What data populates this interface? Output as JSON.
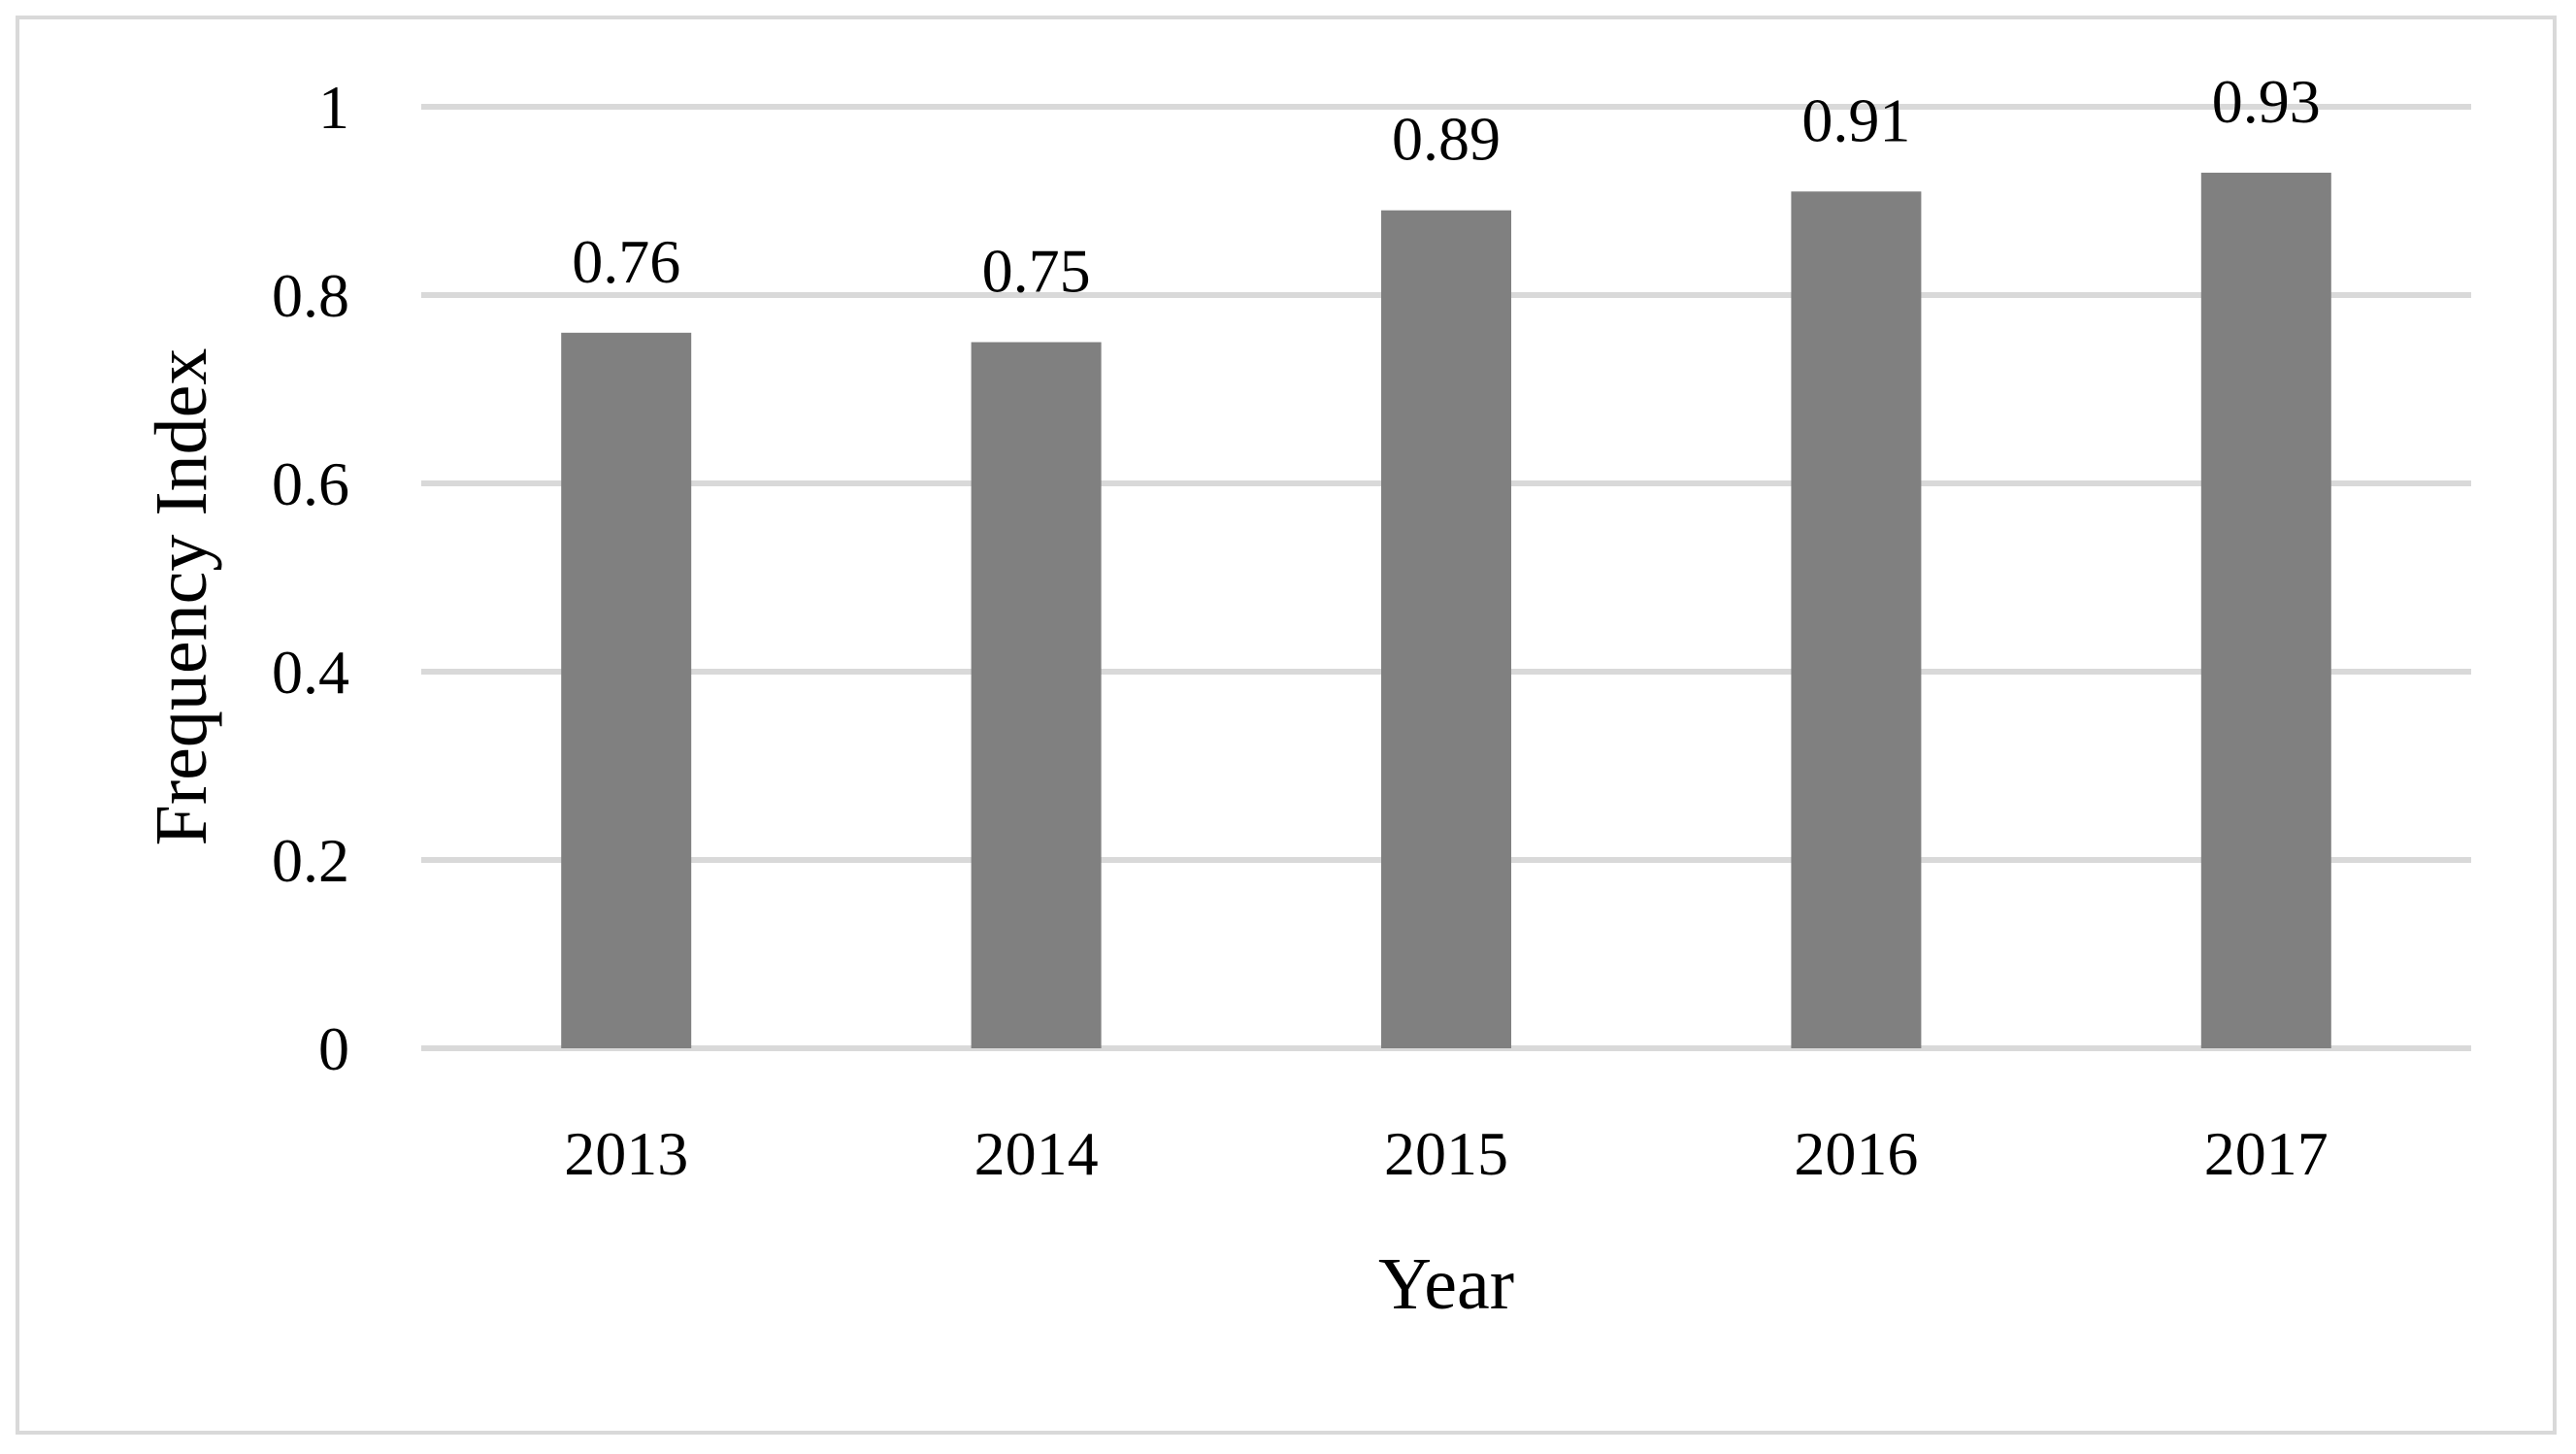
{
  "chart_data": {
    "type": "bar",
    "title": "",
    "xlabel": "Year",
    "ylabel": "Frequency Index",
    "categories": [
      "2013",
      "2014",
      "2015",
      "2016",
      "2017"
    ],
    "values": [
      0.76,
      0.75,
      0.89,
      0.91,
      0.93
    ],
    "data_labels": [
      "0.76",
      "0.75",
      "0.89",
      "0.91",
      "0.93"
    ],
    "ylim": [
      0,
      1
    ],
    "yticks": [
      {
        "value": 0,
        "label": "0"
      },
      {
        "value": 0.2,
        "label": "0.2"
      },
      {
        "value": 0.4,
        "label": "0.4"
      },
      {
        "value": 0.6,
        "label": "0.6"
      },
      {
        "value": 0.8,
        "label": "0.8"
      },
      {
        "value": 1,
        "label": "1"
      }
    ],
    "grid": true,
    "legend": "none",
    "colors": {
      "bar": "#808080",
      "gridline": "#d9d9d9",
      "frame": "#d9d9d9"
    }
  }
}
